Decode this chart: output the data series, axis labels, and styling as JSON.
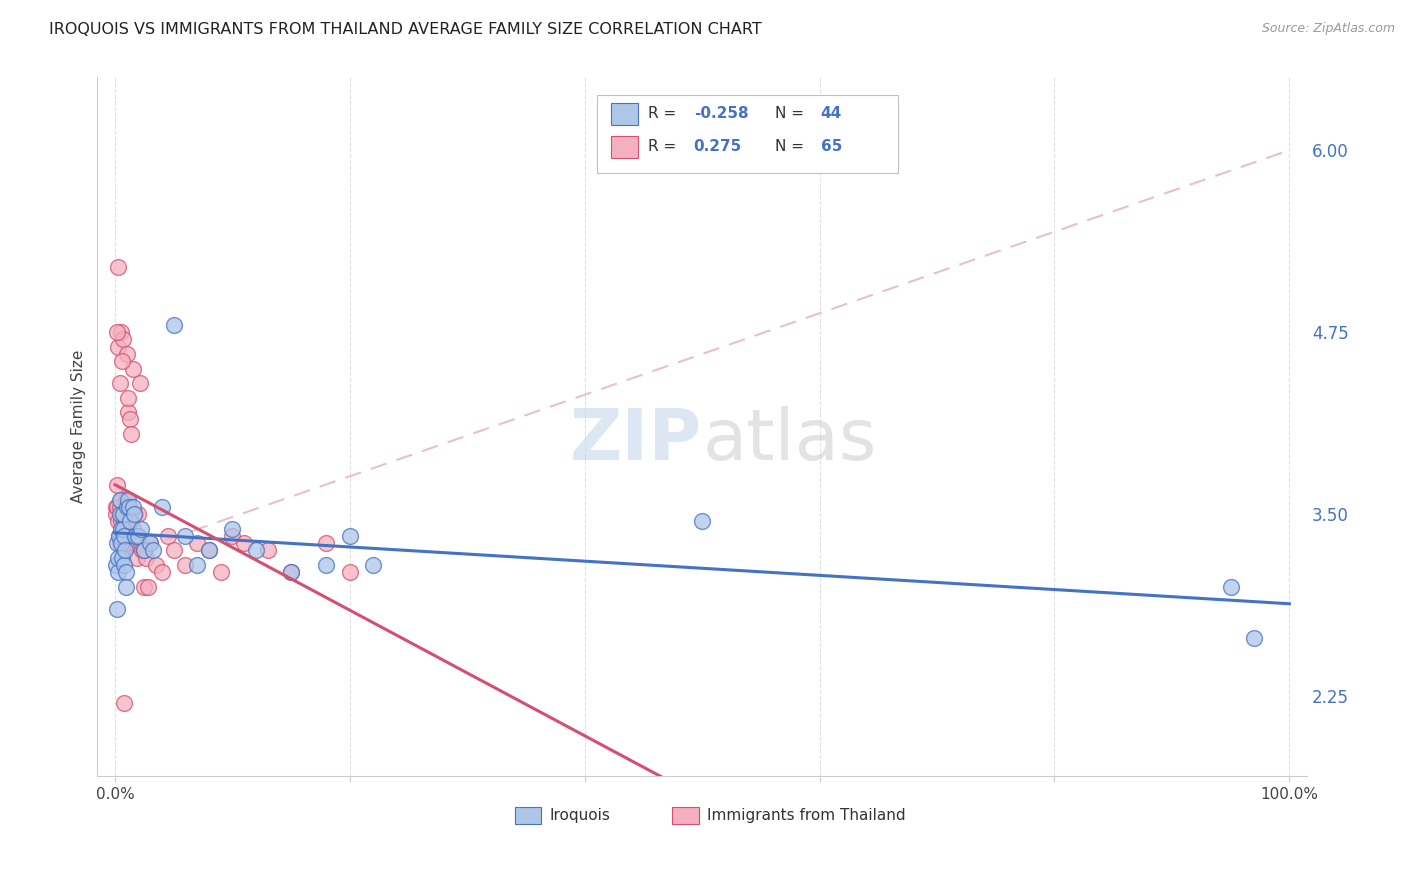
{
  "title": "IROQUOIS VS IMMIGRANTS FROM THAILAND AVERAGE FAMILY SIZE CORRELATION CHART",
  "source": "Source: ZipAtlas.com",
  "ylabel": "Average Family Size",
  "yticks_right": [
    2.25,
    3.5,
    4.75,
    6.0
  ],
  "background_color": "#ffffff",
  "grid_color": "#e0e0e0",
  "watermark": "ZIPatlas",
  "iroquois_color": "#aec6e8",
  "iroquois_line_color": "#4472c4",
  "thailand_color": "#f4b0c0",
  "thailand_line_color": "#d45070",
  "diagonal_line_color": "#e8c0c8",
  "xlim": [
    -1.5,
    101.5
  ],
  "ylim": [
    1.7,
    6.5
  ],
  "iroquois_points": [
    [
      0.1,
      3.15
    ],
    [
      0.15,
      2.85
    ],
    [
      0.2,
      3.3
    ],
    [
      0.25,
      3.1
    ],
    [
      0.3,
      3.2
    ],
    [
      0.35,
      3.35
    ],
    [
      0.4,
      3.5
    ],
    [
      0.45,
      3.6
    ],
    [
      0.5,
      3.4
    ],
    [
      0.55,
      3.3
    ],
    [
      0.6,
      3.2
    ],
    [
      0.65,
      3.4
    ],
    [
      0.7,
      3.5
    ],
    [
      0.75,
      3.35
    ],
    [
      0.8,
      3.15
    ],
    [
      0.85,
      3.25
    ],
    [
      0.9,
      3.1
    ],
    [
      0.95,
      3.0
    ],
    [
      1.0,
      3.55
    ],
    [
      1.1,
      3.6
    ],
    [
      1.2,
      3.55
    ],
    [
      1.3,
      3.45
    ],
    [
      1.5,
      3.55
    ],
    [
      1.6,
      3.5
    ],
    [
      1.7,
      3.35
    ],
    [
      2.0,
      3.35
    ],
    [
      2.2,
      3.4
    ],
    [
      2.5,
      3.25
    ],
    [
      3.0,
      3.3
    ],
    [
      3.2,
      3.25
    ],
    [
      4.0,
      3.55
    ],
    [
      5.0,
      4.8
    ],
    [
      6.0,
      3.35
    ],
    [
      7.0,
      3.15
    ],
    [
      8.0,
      3.25
    ],
    [
      10.0,
      3.4
    ],
    [
      12.0,
      3.25
    ],
    [
      15.0,
      3.1
    ],
    [
      18.0,
      3.15
    ],
    [
      20.0,
      3.35
    ],
    [
      22.0,
      3.15
    ],
    [
      50.0,
      3.45
    ],
    [
      95.0,
      3.0
    ],
    [
      97.0,
      2.65
    ]
  ],
  "thailand_points": [
    [
      0.05,
      3.55
    ],
    [
      0.1,
      3.5
    ],
    [
      0.15,
      3.7
    ],
    [
      0.2,
      3.55
    ],
    [
      0.25,
      4.65
    ],
    [
      0.3,
      3.45
    ],
    [
      0.35,
      3.35
    ],
    [
      0.4,
      3.3
    ],
    [
      0.45,
      3.55
    ],
    [
      0.5,
      3.6
    ],
    [
      0.55,
      3.45
    ],
    [
      0.6,
      3.5
    ],
    [
      0.65,
      3.35
    ],
    [
      0.7,
      3.25
    ],
    [
      0.75,
      3.45
    ],
    [
      0.8,
      3.5
    ],
    [
      0.85,
      3.4
    ],
    [
      0.9,
      3.3
    ],
    [
      0.95,
      3.6
    ],
    [
      1.0,
      3.5
    ],
    [
      1.05,
      3.4
    ],
    [
      1.1,
      4.2
    ],
    [
      1.15,
      4.3
    ],
    [
      1.2,
      3.45
    ],
    [
      1.3,
      4.15
    ],
    [
      1.4,
      4.05
    ],
    [
      1.5,
      3.4
    ],
    [
      1.6,
      3.35
    ],
    [
      1.7,
      3.5
    ],
    [
      1.8,
      3.3
    ],
    [
      1.9,
      3.2
    ],
    [
      2.0,
      3.35
    ],
    [
      2.1,
      4.4
    ],
    [
      2.2,
      3.3
    ],
    [
      2.3,
      3.25
    ],
    [
      2.5,
      3.0
    ],
    [
      2.6,
      3.2
    ],
    [
      2.8,
      3.0
    ],
    [
      3.0,
      3.3
    ],
    [
      3.5,
      3.15
    ],
    [
      4.0,
      3.1
    ],
    [
      4.5,
      3.35
    ],
    [
      5.0,
      3.25
    ],
    [
      6.0,
      3.15
    ],
    [
      7.0,
      3.3
    ],
    [
      8.0,
      3.25
    ],
    [
      0.3,
      5.2
    ],
    [
      0.5,
      4.75
    ],
    [
      0.7,
      4.7
    ],
    [
      0.8,
      2.2
    ],
    [
      1.0,
      4.6
    ],
    [
      1.5,
      4.5
    ],
    [
      2.0,
      3.5
    ],
    [
      0.2,
      4.75
    ],
    [
      9.0,
      3.1
    ],
    [
      10.0,
      3.35
    ],
    [
      11.0,
      3.3
    ],
    [
      13.0,
      3.25
    ],
    [
      15.0,
      3.1
    ],
    [
      18.0,
      3.3
    ],
    [
      20.0,
      3.1
    ],
    [
      0.4,
      4.4
    ],
    [
      0.6,
      4.55
    ],
    [
      1.0,
      3.35
    ],
    [
      2.5,
      3.25
    ]
  ]
}
